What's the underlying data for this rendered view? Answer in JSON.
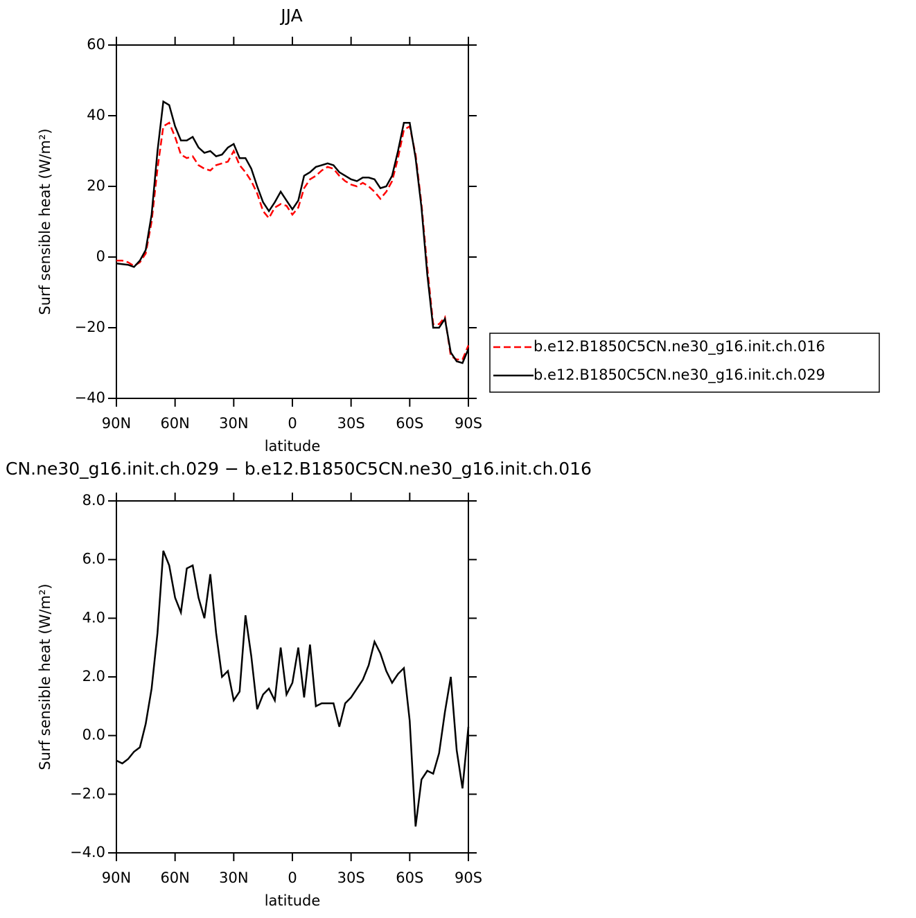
{
  "chart_data": [
    {
      "type": "line",
      "title": "JJA",
      "xlabel": "latitude",
      "ylabel": "Surf sensible heat (W/m²)",
      "x": [
        90,
        87,
        84,
        81,
        78,
        75,
        72,
        69,
        66,
        63,
        60,
        57,
        54,
        51,
        48,
        45,
        42,
        39,
        36,
        33,
        30,
        27,
        24,
        21,
        18,
        15,
        12,
        9,
        6,
        3,
        0,
        -3,
        -6,
        -9,
        -12,
        -15,
        -18,
        -21,
        -24,
        -27,
        -30,
        -33,
        -36,
        -39,
        -42,
        -45,
        -48,
        -51,
        -54,
        -57,
        -60,
        -63,
        -66,
        -69,
        -72,
        -75,
        -78,
        -81,
        -84,
        -87,
        -90
      ],
      "xlim": [
        90,
        -90
      ],
      "xticks": [
        {
          "value": 90,
          "label": "90N"
        },
        {
          "value": 60,
          "label": "60N"
        },
        {
          "value": 30,
          "label": "30N"
        },
        0,
        {
          "value": -30,
          "label": "30S"
        },
        {
          "value": -60,
          "label": "60S"
        },
        {
          "value": -90,
          "label": "90S"
        }
      ],
      "ylim": [
        -40,
        60
      ],
      "yticks": [
        {
          "value": -40,
          "label": "−40"
        },
        {
          "value": -20,
          "label": "−20"
        },
        0,
        20,
        40,
        60
      ],
      "legend": "outside-right",
      "series": [
        {
          "name": "b.e12.B1850C5CN.ne30_g16.init.ch.016",
          "color": "#ff0000",
          "dashed": true,
          "values": [
            -1,
            -1,
            -1.5,
            -2.5,
            -1.5,
            1,
            10,
            25,
            37,
            38,
            34,
            29,
            28,
            28.5,
            26,
            25,
            24.5,
            26,
            26.5,
            27,
            30,
            26,
            24,
            21.5,
            18,
            13,
            11,
            14,
            15,
            14.5,
            12,
            14,
            19.5,
            22,
            23,
            24.5,
            25.5,
            25,
            23,
            21.5,
            20.5,
            20,
            21,
            20,
            18.5,
            16.5,
            18.5,
            21.5,
            28,
            36,
            37,
            29,
            15,
            -3,
            -19,
            -19,
            -17,
            -28,
            -29,
            -29,
            -25
          ]
        },
        {
          "name": "b.e12.B1850C5CN.ne30_g16.init.ch.029",
          "color": "#000000",
          "dashed": false,
          "values": [
            -1.8,
            -2,
            -2.2,
            -2.8,
            -1,
            2,
            12,
            30,
            44,
            43,
            37,
            33,
            33,
            34,
            31,
            29.5,
            30,
            28.5,
            29,
            31,
            32,
            28,
            28,
            25,
            20,
            15.5,
            13,
            15.5,
            18.5,
            16,
            13.5,
            16,
            23,
            24,
            25.5,
            26,
            26.5,
            26,
            24,
            23,
            22,
            21.5,
            22.5,
            22.5,
            22,
            19.5,
            20,
            23,
            30,
            38,
            38,
            28,
            14,
            -5,
            -20,
            -20,
            -17.5,
            -27,
            -29.5,
            -30,
            -26
          ]
        }
      ]
    },
    {
      "type": "line",
      "title": "CN.ne30_g16.init.ch.029 − b.e12.B1850C5CN.ne30_g16.init.ch.016",
      "xlabel": "latitude",
      "ylabel": "Surf sensible heat (W/m²)",
      "x": [
        90,
        87,
        84,
        81,
        78,
        75,
        72,
        69,
        66,
        63,
        60,
        57,
        54,
        51,
        48,
        45,
        42,
        39,
        36,
        33,
        30,
        27,
        24,
        21,
        18,
        15,
        12,
        9,
        6,
        3,
        0,
        -3,
        -6,
        -9,
        -12,
        -15,
        -18,
        -21,
        -24,
        -27,
        -30,
        -33,
        -36,
        -39,
        -42,
        -45,
        -48,
        -51,
        -54,
        -57,
        -60,
        -63,
        -66,
        -69,
        -72,
        -75,
        -78,
        -81,
        -84,
        -87,
        -90
      ],
      "xlim": [
        90,
        -90
      ],
      "xticks": [
        {
          "value": 90,
          "label": "90N"
        },
        {
          "value": 60,
          "label": "60N"
        },
        {
          "value": 30,
          "label": "30N"
        },
        0,
        {
          "value": -30,
          "label": "30S"
        },
        {
          "value": -60,
          "label": "60S"
        },
        {
          "value": -90,
          "label": "90S"
        }
      ],
      "ylim": [
        -4,
        8
      ],
      "yticks": [
        {
          "value": -4,
          "label": "−4.0"
        },
        {
          "value": -2,
          "label": "−2.0"
        },
        {
          "value": 0,
          "label": "0.0"
        },
        {
          "value": 2,
          "label": "2.0"
        },
        {
          "value": 4,
          "label": "4.0"
        },
        {
          "value": 6,
          "label": "6.0"
        },
        {
          "value": 8,
          "label": "8.0"
        }
      ],
      "series": [
        {
          "color": "#000000",
          "dashed": false,
          "values": [
            -0.85,
            -0.95,
            -0.8,
            -0.55,
            -0.4,
            0.4,
            1.6,
            3.5,
            6.3,
            5.8,
            4.7,
            4.2,
            5.7,
            5.8,
            4.7,
            4.0,
            5.5,
            3.5,
            2.0,
            2.2,
            1.2,
            1.5,
            4.1,
            2.7,
            0.9,
            1.4,
            1.6,
            1.2,
            3.0,
            1.4,
            1.8,
            3.0,
            1.3,
            3.1,
            1.0,
            1.1,
            1.1,
            1.1,
            0.3,
            1.1,
            1.3,
            1.6,
            1.9,
            2.4,
            3.2,
            2.8,
            2.2,
            1.8,
            2.1,
            2.3,
            0.5,
            -3.1,
            -1.5,
            -1.2,
            -1.3,
            -0.6,
            0.8,
            2.0,
            -0.5,
            -1.8,
            0.3
          ]
        }
      ]
    }
  ]
}
